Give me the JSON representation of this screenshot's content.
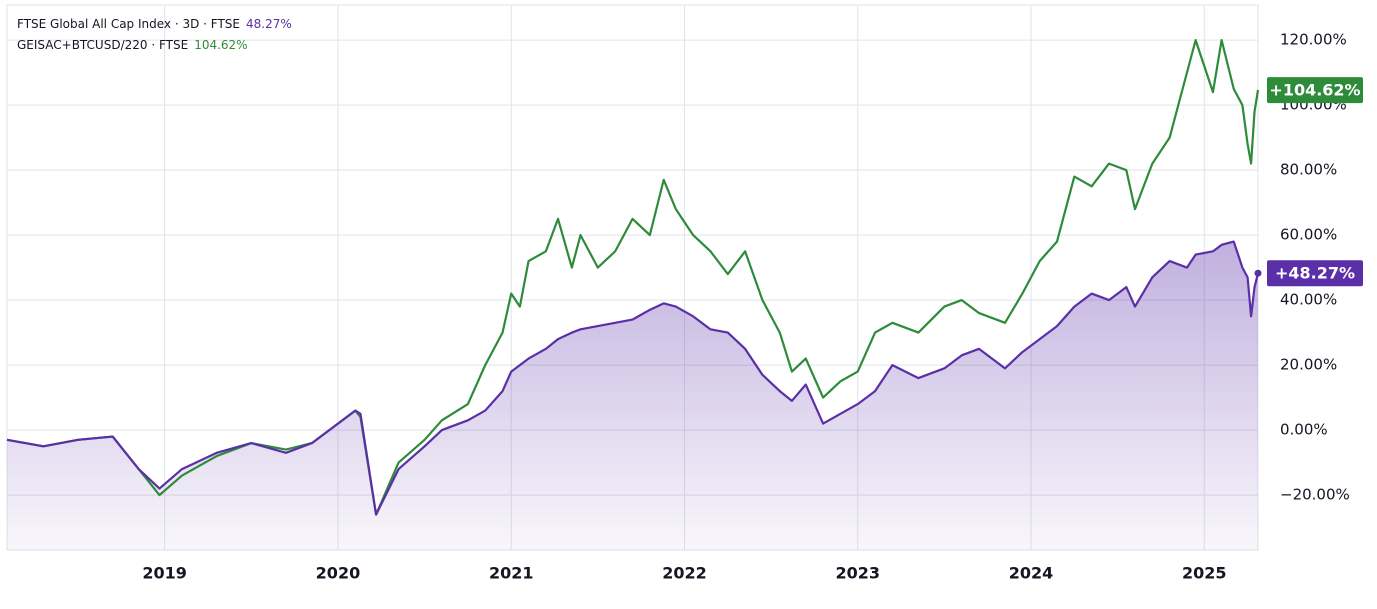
{
  "chart_data": {
    "type": "line",
    "x": [
      2018.09,
      2018.3,
      2018.5,
      2018.7,
      2018.85,
      2018.97,
      2019.1,
      2019.3,
      2019.5,
      2019.7,
      2019.85,
      2020.0,
      2020.1,
      2020.13,
      2020.22,
      2020.35,
      2020.5,
      2020.6,
      2020.75,
      2020.85,
      2020.95,
      2021.0,
      2021.05,
      2021.1,
      2021.2,
      2021.27,
      2021.35,
      2021.4,
      2021.5,
      2021.6,
      2021.7,
      2021.8,
      2021.88,
      2021.95,
      2022.05,
      2022.15,
      2022.25,
      2022.35,
      2022.45,
      2022.55,
      2022.62,
      2022.7,
      2022.8,
      2022.9,
      2023.0,
      2023.1,
      2023.2,
      2023.35,
      2023.5,
      2023.6,
      2023.7,
      2023.85,
      2023.95,
      2024.05,
      2024.15,
      2024.25,
      2024.35,
      2024.45,
      2024.55,
      2024.6,
      2024.7,
      2024.8,
      2024.9,
      2024.95,
      2025.05,
      2025.1,
      2025.17,
      2025.22,
      2025.25,
      2025.27,
      2025.29,
      2025.31
    ],
    "series": [
      {
        "name": "FTSE Global All Cap Index · 3D · FTSE",
        "legend_value": "48.27%",
        "last_label": "+48.27%",
        "color": "#5b2fa8",
        "fill": true,
        "values": [
          -3,
          -5,
          -3,
          -2,
          -12,
          -18,
          -12,
          -7,
          -4,
          -7,
          -4,
          2,
          6,
          5,
          -26,
          -12,
          -5,
          0,
          3,
          6,
          12,
          18,
          20,
          22,
          25,
          28,
          30,
          31,
          32,
          33,
          34,
          37,
          39,
          38,
          35,
          31,
          30,
          25,
          17,
          12,
          9,
          14,
          2,
          5,
          8,
          12,
          20,
          16,
          19,
          23,
          25,
          19,
          24,
          28,
          32,
          38,
          42,
          40,
          44,
          38,
          47,
          52,
          50,
          54,
          55,
          57,
          58,
          50,
          47,
          35,
          44,
          48.27
        ]
      },
      {
        "name": "GEISAC+BTCUSD/220 · FTSE",
        "legend_value": "104.62%",
        "last_label": "+104.62%",
        "color": "#2e8b3a",
        "fill": false,
        "values": [
          -3,
          -5,
          -3,
          -2,
          -12,
          -20,
          -14,
          -8,
          -4,
          -6,
          -4,
          2,
          6,
          4,
          -26,
          -10,
          -3,
          3,
          8,
          20,
          30,
          42,
          38,
          52,
          55,
          65,
          50,
          60,
          50,
          55,
          65,
          60,
          77,
          68,
          60,
          55,
          48,
          55,
          40,
          30,
          18,
          22,
          10,
          15,
          18,
          30,
          33,
          30,
          38,
          40,
          36,
          33,
          42,
          52,
          58,
          78,
          75,
          82,
          80,
          68,
          82,
          90,
          110,
          120,
          104,
          120,
          105,
          100,
          88,
          82,
          98,
          104.62
        ]
      }
    ],
    "xlim": [
      2018.09,
      2025.31
    ],
    "xticks": [
      2019,
      2020,
      2021,
      2022,
      2023,
      2024,
      2025
    ],
    "ylim": [
      -36.9,
      130.8
    ],
    "yticks": [
      {
        "value": -20,
        "label": "−20.00%"
      },
      {
        "value": 0,
        "label": "0.00%"
      },
      {
        "value": 20,
        "label": "20.00%"
      },
      {
        "value": 40,
        "label": "40.00%"
      },
      {
        "value": 60,
        "label": "60.00%"
      },
      {
        "value": 80,
        "label": "80.00%"
      },
      {
        "value": 100,
        "label": "100.00%"
      },
      {
        "value": 120,
        "label": "120.00%"
      }
    ],
    "grid": true
  }
}
